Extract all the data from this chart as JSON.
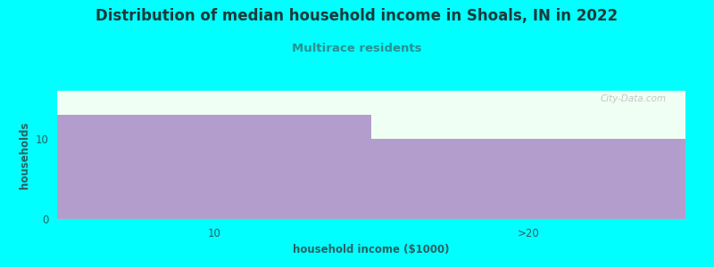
{
  "title": "Distribution of median household income in Shoals, IN in 2022",
  "subtitle": "Multirace residents",
  "xlabel": "household income ($1000)",
  "ylabel": "households",
  "categories": [
    "10",
    ">20"
  ],
  "values": [
    13,
    10
  ],
  "bar_color": "#b39dcc",
  "background_color": "#00ffff",
  "plot_bg_color": "#f0fff4",
  "title_color": "#1a3a3a",
  "subtitle_color": "#2a9090",
  "xlabel_color": "#2a6060",
  "ylabel_color": "#2a6060",
  "tick_color": "#2a6060",
  "ylim": [
    0,
    16
  ],
  "yticks": [
    0,
    10
  ],
  "title_fontsize": 12,
  "subtitle_fontsize": 9.5,
  "label_fontsize": 8.5,
  "watermark_text": "City-Data.com",
  "figsize": [
    8.0,
    3.0
  ],
  "dpi": 100
}
